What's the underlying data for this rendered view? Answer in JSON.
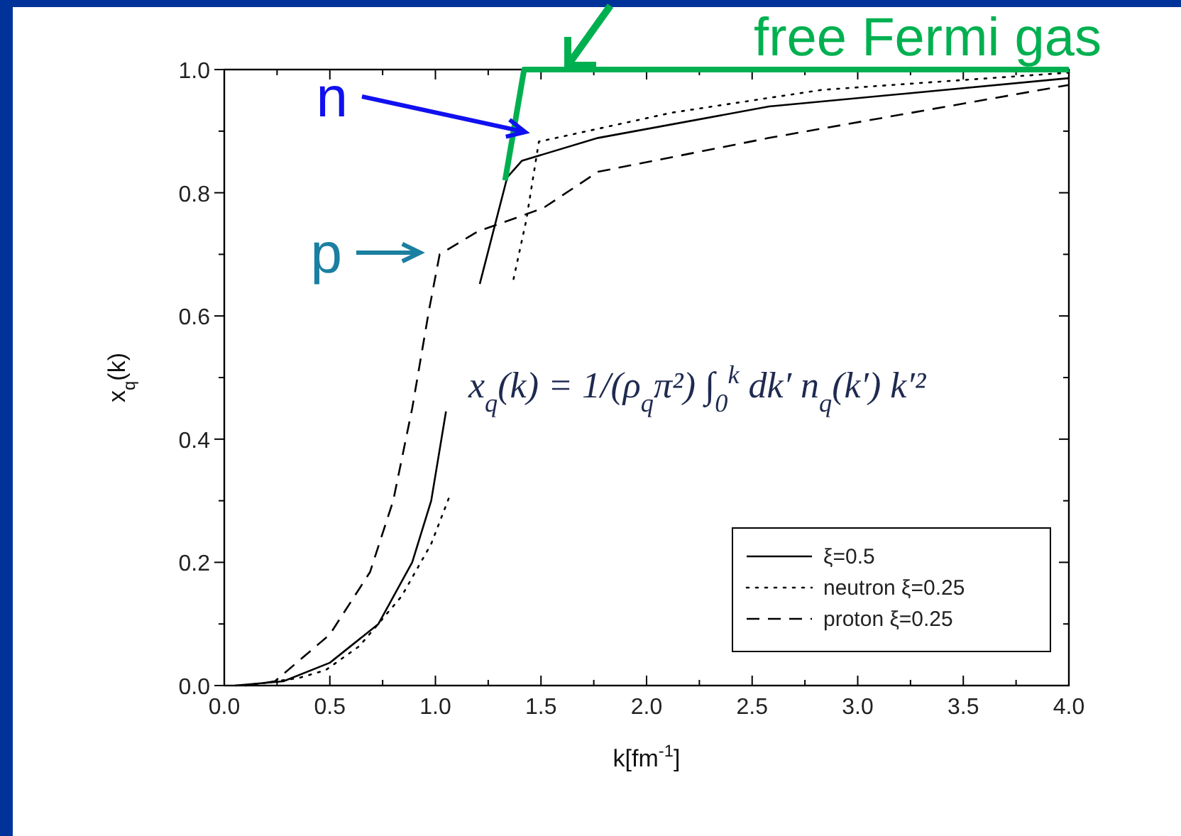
{
  "chart_data": {
    "type": "line",
    "xlabel": "k[fm$^{-1}$]",
    "ylabel": "x$_{q}$(k)",
    "xlim": [
      0,
      4
    ],
    "ylim": [
      0,
      1
    ],
    "xticks": [
      {
        "value": 0,
        "label": "0.0"
      },
      {
        "value": 0.25,
        "label": null
      },
      {
        "value": 0.5,
        "label": "0.5"
      },
      {
        "value": 0.75,
        "label": null
      },
      {
        "value": 1,
        "label": "1.0"
      },
      {
        "value": 1.25,
        "label": null
      },
      {
        "value": 1.5,
        "label": "1.5"
      },
      {
        "value": 1.75,
        "label": null
      },
      {
        "value": 2,
        "label": "2.0"
      },
      {
        "value": 2.25,
        "label": null
      },
      {
        "value": 2.5,
        "label": "2.5"
      },
      {
        "value": 2.75,
        "label": null
      },
      {
        "value": 3,
        "label": "3.0"
      },
      {
        "value": 3.25,
        "label": null
      },
      {
        "value": 3.5,
        "label": "3.5"
      },
      {
        "value": 3.75,
        "label": null
      },
      {
        "value": 4,
        "label": "4.0"
      }
    ],
    "yticks": [
      {
        "value": 0,
        "label": "0.0"
      },
      {
        "value": 0.1,
        "label": null
      },
      {
        "value": 0.2,
        "label": "0.2"
      },
      {
        "value": 0.3,
        "label": null
      },
      {
        "value": 0.4,
        "label": "0.4"
      },
      {
        "value": 0.5,
        "label": null
      },
      {
        "value": 0.6,
        "label": "0.6"
      },
      {
        "value": 0.7,
        "label": null
      },
      {
        "value": 0.8,
        "label": "0.8"
      },
      {
        "value": 0.9,
        "label": null
      },
      {
        "value": 1,
        "label": "1.0"
      }
    ],
    "grid": false,
    "legend": "bottom right",
    "marker": "none",
    "series": [
      {
        "name": "ξ=0.5",
        "color": "#000000",
        "line_style": "solid",
        "x": [
          0.05,
          0.28,
          0.5,
          0.73,
          0.89,
          0.98,
          1.05,
          1.13,
          1.21,
          1.34,
          1.41,
          1.77,
          2.58,
          4.0
        ],
        "values": [
          0,
          0.007,
          0.037,
          0.1,
          0.2,
          0.3,
          0.445,
          null,
          0.652,
          0.825,
          0.852,
          0.889,
          0.94,
          0.986
        ]
      },
      {
        "name": "neutron ξ=0.25",
        "color": "#000000",
        "line_style": "dotted",
        "x": [
          0.1,
          0.35,
          0.48,
          0.64,
          0.84,
          0.98,
          1.07,
          1.2,
          1.37,
          1.43,
          1.49,
          2.12,
          2.83,
          4.0
        ],
        "values": [
          0,
          0.012,
          0.025,
          0.064,
          0.145,
          0.23,
          0.31,
          null,
          0.66,
          0.755,
          0.883,
          0.93,
          0.967,
          0.995
        ]
      },
      {
        "name": "proton ξ=0.25",
        "color": "#000000",
        "line_style": "dashed",
        "x": [
          0.1,
          0.24,
          0.5,
          0.69,
          0.8,
          0.89,
          0.97,
          1.02,
          1.2,
          1.51,
          1.77,
          2.58,
          4.0
        ],
        "values": [
          0,
          0.007,
          0.083,
          0.184,
          0.3,
          0.45,
          0.61,
          0.7,
          0.737,
          0.775,
          0.834,
          0.889,
          0.975
        ]
      },
      {
        "color": "#00b050",
        "line_style": "solid",
        "x": [
          1.33,
          1.42,
          4.0
        ],
        "values": [
          0.82,
          1.0,
          1.0
        ]
      }
    ],
    "annotations": [
      "x$_{q}$(k) = 1/(ρ$_{q}$π²) ∫$_{0}$$^{k}$ dk′ n$_{q}$(k′) k′²",
      "n",
      "p",
      "free Fermi gas"
    ]
  }
}
